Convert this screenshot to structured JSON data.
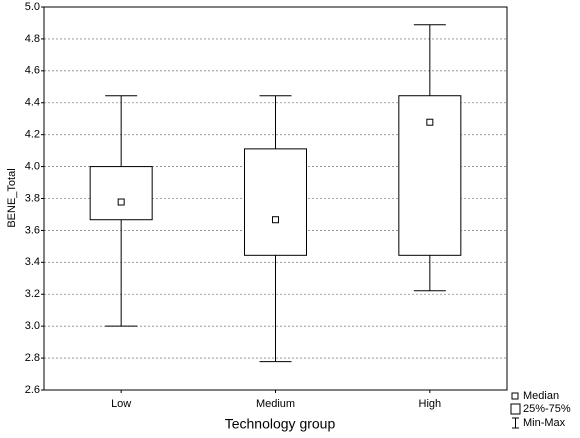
{
  "chart_data": {
    "type": "box",
    "x_label": "Technology group",
    "y_label": "BENE_Total",
    "categories": [
      "Low",
      "Medium",
      "High"
    ],
    "min": [
      3.0,
      2.778,
      3.222
    ],
    "q1": [
      3.667,
      3.444,
      3.444
    ],
    "median": [
      3.778,
      3.667,
      4.278
    ],
    "q3": [
      4.0,
      4.111,
      4.444
    ],
    "max": [
      4.444,
      4.444,
      4.889
    ],
    "legend": [
      "Median",
      "25%-75%",
      "Min-Max"
    ],
    "ylim": [
      2.6,
      5.0
    ],
    "yticks": [
      2.6,
      2.8,
      {
        "value": 3.0,
        "label": "3.0"
      },
      3.2,
      3.4,
      3.6,
      3.8,
      {
        "value": 4.0,
        "label": "4.0"
      },
      4.2,
      4.4,
      4.6,
      4.8,
      {
        "value": 5.0,
        "label": "5.0"
      }
    ],
    "grid": true
  }
}
